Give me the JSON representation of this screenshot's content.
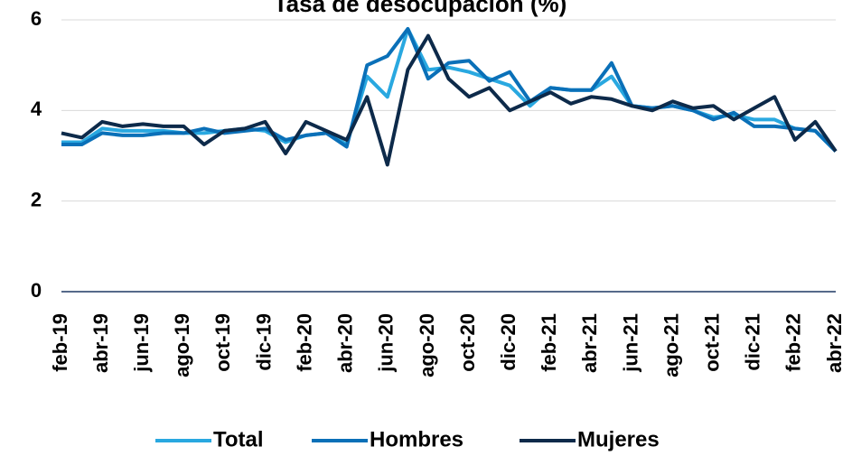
{
  "chart_data": {
    "type": "line",
    "title": "Tasa de desocupación (%)",
    "categories": [
      "feb-19",
      null,
      "abr-19",
      null,
      "jun-19",
      null,
      "ago-19",
      null,
      "oct-19",
      null,
      "dic-19",
      null,
      "feb-20",
      null,
      "abr-20",
      null,
      "jun-20",
      null,
      "ago-20",
      null,
      "oct-20",
      null,
      "dic-20",
      null,
      "feb-21",
      null,
      "abr-21",
      null,
      "jun-21",
      null,
      "ago-21",
      null,
      "oct-21",
      null,
      "dic-21",
      null,
      "feb-22",
      null,
      "abr-22"
    ],
    "series": [
      {
        "name": "Total",
        "color": "#29a8e0",
        "values": [
          3.3,
          3.3,
          3.6,
          3.55,
          3.55,
          3.55,
          3.5,
          3.5,
          3.55,
          3.6,
          3.55,
          3.3,
          3.45,
          3.5,
          3.25,
          4.75,
          4.3,
          5.8,
          4.9,
          4.95,
          4.85,
          4.7,
          4.55,
          4.1,
          4.5,
          4.45,
          4.45,
          4.75,
          4.1,
          4.05,
          4.1,
          4.0,
          3.85,
          3.9,
          3.8,
          3.8,
          3.6,
          3.55,
          3.1
        ]
      },
      {
        "name": "Hombres",
        "color": "#0a70b8",
        "values": [
          3.25,
          3.25,
          3.5,
          3.45,
          3.45,
          3.5,
          3.5,
          3.6,
          3.5,
          3.55,
          3.6,
          3.35,
          3.45,
          3.5,
          3.2,
          5.0,
          5.2,
          5.8,
          4.7,
          5.05,
          5.1,
          4.65,
          4.85,
          4.2,
          4.5,
          4.45,
          4.45,
          5.05,
          4.1,
          4.05,
          4.1,
          4.0,
          3.8,
          3.95,
          3.65,
          3.65,
          3.6,
          3.55,
          3.1
        ]
      },
      {
        "name": "Mujeres",
        "color": "#0d2a4a",
        "values": [
          3.5,
          3.4,
          3.75,
          3.65,
          3.7,
          3.65,
          3.65,
          3.25,
          3.55,
          3.6,
          3.75,
          3.05,
          3.75,
          3.55,
          3.35,
          4.3,
          2.8,
          4.9,
          5.65,
          4.7,
          4.3,
          4.5,
          4.0,
          4.2,
          4.4,
          4.15,
          4.3,
          4.25,
          4.1,
          4.0,
          4.2,
          4.05,
          4.1,
          3.8,
          4.05,
          4.3,
          3.35,
          3.75,
          3.1
        ]
      }
    ],
    "ylim": [
      0,
      6
    ],
    "yticks": [
      0,
      2,
      4,
      6
    ],
    "grid": true
  }
}
